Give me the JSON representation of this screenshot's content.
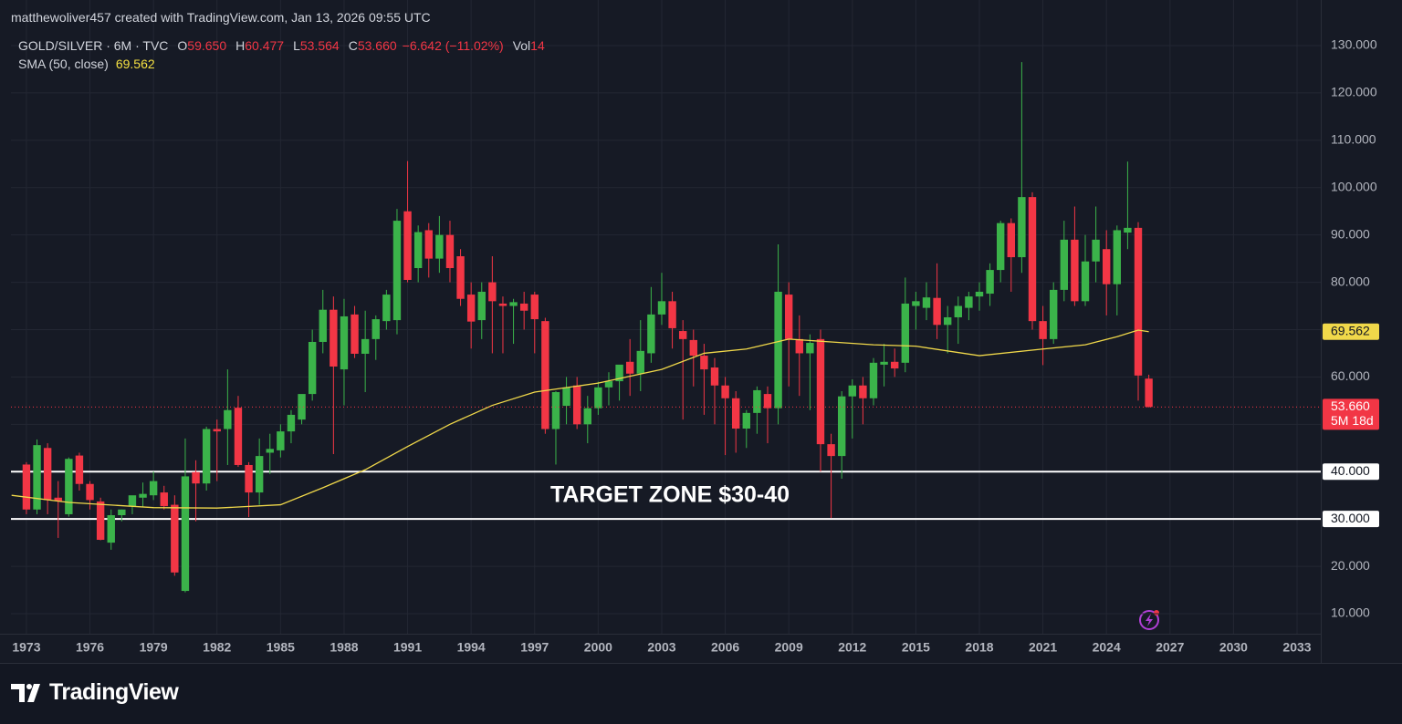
{
  "header": {
    "text": "matthewoliver457 created with TradingView.com, Jan 13, 2026 09:55 UTC"
  },
  "legend": {
    "symbol": "GOLD/SILVER · 6M · TVC",
    "items": [
      {
        "key": "O",
        "text": "59.650"
      },
      {
        "key": "H",
        "text": "60.477"
      },
      {
        "key": "L",
        "text": "53.564"
      },
      {
        "key": "C",
        "text": "53.660"
      }
    ],
    "change": "−6.642 (−11.02%)",
    "volume_key": "Vol",
    "volume": "14"
  },
  "chart_data": {
    "type": "candlestick",
    "up_color": "#3bb34a",
    "down_color": "#f23645",
    "grid": true,
    "xlim": [
      1972.27,
      2034.12
    ],
    "ylim": [
      5.76,
      132.31
    ],
    "xticks": [
      1973,
      1976,
      1979,
      1982,
      1985,
      1988,
      1991,
      1994,
      1997,
      2000,
      2003,
      2006,
      2009,
      2012,
      2015,
      2018,
      2021,
      2024,
      2027,
      2030,
      2033
    ],
    "yticks": [
      {
        "value": 10,
        "label": "10.000"
      },
      {
        "value": 20,
        "label": "20.000"
      },
      {
        "value": 30,
        "label": "30.000"
      },
      {
        "value": 40,
        "label": "40.000"
      },
      {
        "value": 50,
        "label": "50.000"
      },
      {
        "value": 60,
        "label": "60.000"
      },
      {
        "value": 70,
        "label": "70.000"
      },
      {
        "value": 80,
        "label": "80.000"
      },
      {
        "value": 90,
        "label": "90.000"
      },
      {
        "value": 100,
        "label": "100.000"
      },
      {
        "value": 110,
        "label": "110.000"
      },
      {
        "value": 120,
        "label": "120.000"
      },
      {
        "value": 130,
        "label": "130.000"
      }
    ],
    "candles": {
      "x": [
        1973,
        1973.5,
        1974,
        1974.5,
        1975,
        1975.5,
        1976,
        1976.5,
        1977,
        1977.5,
        1978,
        1978.5,
        1979,
        1979.5,
        1980,
        1980.5,
        1981,
        1981.5,
        1982,
        1982.5,
        1983,
        1983.5,
        1984,
        1984.5,
        1985,
        1985.5,
        1986,
        1986.5,
        1987,
        1987.5,
        1988,
        1988.5,
        1989,
        1989.5,
        1990,
        1990.5,
        1991,
        1991.5,
        1992,
        1992.5,
        1993,
        1993.5,
        1994,
        1994.5,
        1995,
        1995.5,
        1996,
        1996.5,
        1997,
        1997.5,
        1998,
        1998.5,
        1999,
        1999.5,
        2000,
        2000.5,
        2001,
        2001.5,
        2002,
        2002.5,
        2003,
        2003.5,
        2004,
        2004.5,
        2005,
        2005.5,
        2006,
        2006.5,
        2007,
        2007.5,
        2008,
        2008.5,
        2009,
        2009.5,
        2010,
        2010.5,
        2011,
        2011.5,
        2012,
        2012.5,
        2013,
        2013.5,
        2014,
        2014.5,
        2015,
        2015.5,
        2016,
        2016.5,
        2017,
        2017.5,
        2018,
        2018.5,
        2019,
        2019.5,
        2020,
        2020.5,
        2021,
        2021.5,
        2022,
        2022.5,
        2023,
        2023.5,
        2024,
        2024.5,
        2025,
        2025.5,
        2026
      ],
      "open": [
        41.5,
        32,
        45,
        34.5,
        31,
        43.4,
        37.4,
        33.7,
        25,
        30.8,
        32.7,
        34.5,
        35,
        35.6,
        33,
        14.8,
        39.9,
        37.5,
        49,
        49,
        53.5,
        41.4,
        35.6,
        44,
        44.5,
        48.5,
        51,
        56.4,
        67.4,
        74.2,
        61.6,
        73.2,
        64.9,
        68,
        71.8,
        72,
        95,
        83,
        91,
        85,
        90,
        85.5,
        77.4,
        72,
        80,
        75.5,
        75,
        75.5,
        77.4,
        71.8,
        49,
        53.9,
        58.2,
        50,
        53.4,
        57.8,
        59.1,
        63.2,
        60.7,
        65,
        73.2,
        76,
        69.7,
        67.8,
        64.5,
        62,
        58.2,
        55.5,
        49.1,
        52.4,
        56.4,
        53.4,
        77.4,
        68,
        65,
        68,
        45.8,
        43.3,
        55.9,
        58.2,
        55.5,
        62.6,
        63.2,
        63,
        75,
        74.6,
        76.7,
        71,
        72.6,
        74.6,
        77,
        77.6,
        82.6,
        92.5,
        85.3,
        98,
        71.8,
        68,
        78.4,
        89,
        76,
        84.4,
        87,
        79.6,
        90.5,
        91.5,
        59.65
      ],
      "high": [
        42,
        46.8,
        46,
        38,
        43,
        44,
        38,
        34.5,
        32,
        32,
        34,
        37.7,
        40,
        37,
        35,
        47,
        42.4,
        49.5,
        51,
        61.6,
        56,
        42,
        47,
        48,
        50,
        53,
        56,
        70,
        78.4,
        77,
        76.5,
        75,
        74,
        73,
        78.4,
        95.5,
        105.6,
        92,
        92.5,
        94,
        93,
        87,
        80,
        80,
        85.5,
        77,
        76.5,
        78,
        78,
        72.5,
        57,
        60,
        60,
        56,
        59,
        61,
        62,
        68,
        72,
        79,
        82,
        78,
        72,
        70,
        67,
        64,
        60,
        57,
        53,
        58,
        58,
        88,
        80,
        73,
        69,
        70,
        48,
        57,
        59.5,
        60,
        64,
        67,
        66,
        81,
        78,
        80,
        84,
        75,
        77,
        78,
        80,
        84,
        93,
        93.5,
        126.5,
        99,
        75,
        80,
        93,
        96,
        90,
        96,
        91,
        92,
        105.5,
        92.7,
        60.477
      ],
      "low": [
        31,
        31,
        31,
        26,
        30.5,
        36,
        32,
        25.5,
        23.5,
        29.5,
        31,
        32.5,
        34,
        32,
        18,
        14.5,
        29.5,
        36,
        38,
        41.4,
        41,
        30.4,
        33,
        39.5,
        43,
        46,
        50,
        55,
        65,
        43.7,
        54,
        64,
        56.8,
        63.6,
        70,
        69,
        80,
        80,
        81,
        82,
        80,
        75,
        66,
        68,
        65,
        65,
        67,
        70,
        65,
        48,
        41.5,
        50,
        49,
        46,
        52,
        54,
        55,
        56,
        57,
        63,
        71,
        66,
        51,
        58,
        52,
        50,
        43.5,
        44,
        45,
        48,
        46,
        50,
        58,
        56,
        53,
        40,
        30.2,
        38.5,
        47,
        50,
        54,
        58,
        60,
        61,
        70,
        72,
        68,
        65,
        67,
        72,
        74,
        75,
        80,
        78,
        82,
        70,
        62.5,
        67,
        76,
        75,
        75,
        80,
        73,
        73,
        87,
        55,
        53.564
      ],
      "close": [
        32,
        45.6,
        34,
        33.8,
        42.7,
        37.4,
        34,
        25.6,
        30.8,
        32,
        35,
        35.3,
        38,
        32.7,
        18.7,
        39,
        37.5,
        49,
        48.5,
        53,
        41.4,
        35.6,
        43.3,
        44.8,
        48.5,
        52,
        56.4,
        67.4,
        74.2,
        62.2,
        72.8,
        64.9,
        68,
        72.2,
        77.4,
        93,
        80.5,
        90.6,
        85,
        90,
        83,
        76.5,
        71.7,
        78,
        76,
        75,
        75.8,
        74,
        72.2,
        49,
        56.8,
        57.8,
        50,
        53.4,
        57.8,
        59.1,
        62.6,
        60.7,
        65.5,
        73.2,
        76,
        70.3,
        68,
        64.5,
        61.6,
        58.2,
        55.5,
        49.1,
        52.4,
        57.2,
        53.4,
        78,
        68,
        65,
        67.2,
        45.8,
        43.3,
        55.9,
        58.2,
        55.5,
        63,
        63.2,
        61.8,
        75.5,
        76,
        76.8,
        71,
        72.6,
        75,
        77,
        78,
        82.6,
        92.5,
        85.3,
        98,
        71.8,
        68,
        78.4,
        89,
        76,
        84.4,
        89,
        79.6,
        91,
        91.5,
        60.3,
        53.66
      ]
    },
    "sma": {
      "name": "SMA (50, close)",
      "value_label": "69.562",
      "color": "#f0d84a",
      "x": [
        1972.3,
        1975,
        1979,
        1982,
        1985,
        1987,
        1989,
        1991,
        1993,
        1995,
        1997,
        2000,
        2003,
        2005,
        2007,
        2009,
        2011,
        2013,
        2015,
        2018,
        2021,
        2023,
        2024.5,
        2025.5,
        2026
      ],
      "values": [
        35,
        33.5,
        32.4,
        32.3,
        33,
        36.6,
        40.4,
        45.3,
        50,
        54,
        56.8,
        58.7,
        61.6,
        65,
        65.9,
        68,
        67.4,
        66.8,
        66.5,
        64.5,
        65.9,
        66.8,
        68.5,
        69.9,
        69.562
      ]
    },
    "last_price": {
      "label": "53.660",
      "countdown": "5M 18d"
    },
    "horizontal_lines": [
      {
        "value": 40,
        "label": "40.000"
      },
      {
        "value": 30,
        "label": "30.000"
      }
    ],
    "annotation": "TARGET ZONE $30-40"
  },
  "footer": {
    "brand": "TradingView"
  }
}
